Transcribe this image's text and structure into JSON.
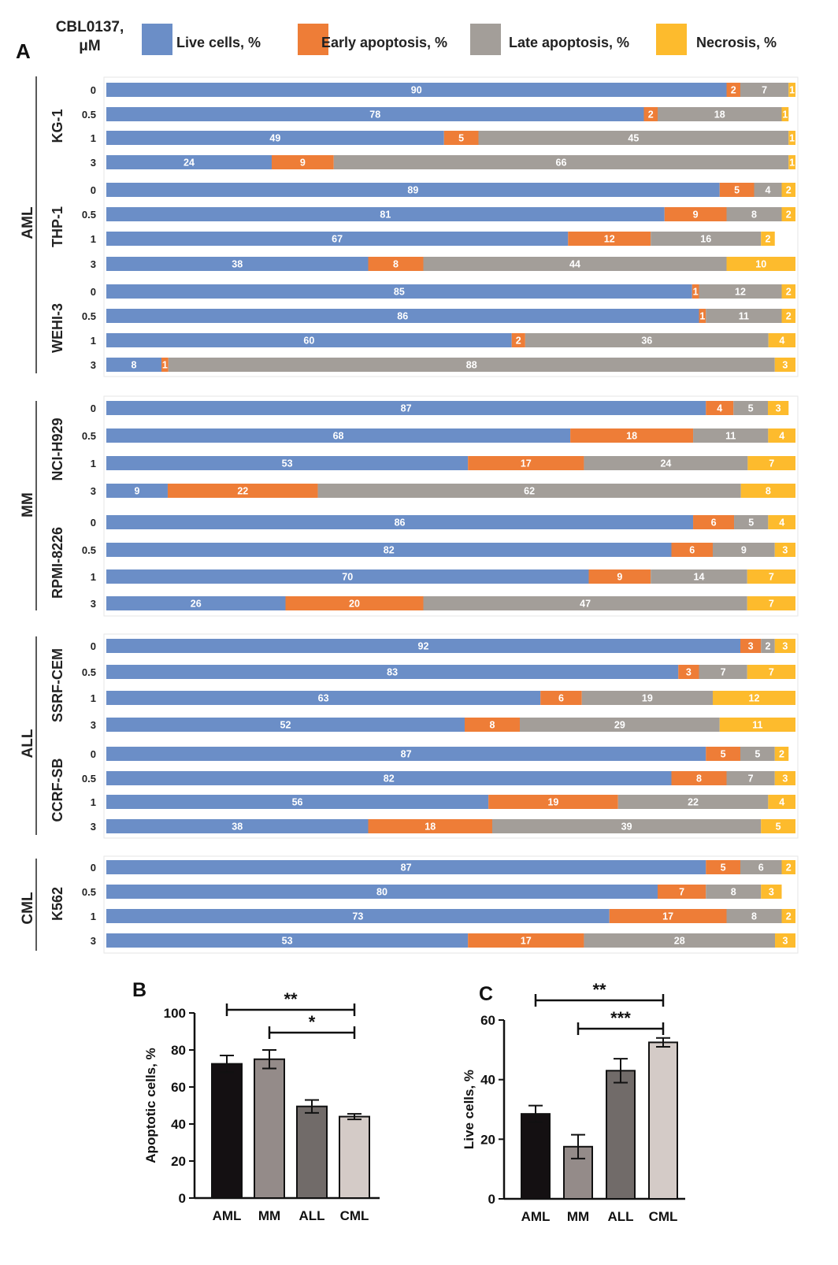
{
  "colors": {
    "live": "#6b8ec7",
    "early": "#ee7d37",
    "late": "#a39e99",
    "necrosis": "#fdbb2d",
    "black": "#111111",
    "bar_b": [
      "#141012",
      "#948b89",
      "#716b69",
      "#d4cbc7"
    ],
    "bar_c": [
      "#141012",
      "#948b89",
      "#716b69",
      "#d4cbc7"
    ]
  },
  "panel_labels": {
    "a": "A",
    "b": "B",
    "c": "C"
  },
  "legend": {
    "dose_label_line1": "CBL0137,",
    "dose_label_line2": "μM",
    "entries": [
      {
        "key": "live",
        "label": "Live cells, %"
      },
      {
        "key": "early",
        "label": "Early apoptosis, %"
      },
      {
        "key": "late",
        "label": "Late apoptosis, %"
      },
      {
        "key": "necrosis",
        "label": "Necrosis, %"
      }
    ]
  },
  "chart_data": [
    {
      "type": "bar",
      "orientation": "horizontal",
      "stacked": true,
      "panel": "A",
      "series_names": [
        "Live cells, %",
        "Early apoptosis, %",
        "Late apoptosis, %",
        "Necrosis, %"
      ],
      "xlim": [
        0,
        100
      ],
      "groups": [
        {
          "name": "AML",
          "cell_lines": [
            {
              "name": "KG-1",
              "rows": [
                {
                  "dose": "0",
                  "values": [
                    90,
                    2,
                    7,
                    1
                  ]
                },
                {
                  "dose": "0.5",
                  "values": [
                    78,
                    2,
                    18,
                    1
                  ]
                },
                {
                  "dose": "1",
                  "values": [
                    49,
                    5,
                    45,
                    1
                  ]
                },
                {
                  "dose": "3",
                  "values": [
                    24,
                    9,
                    66,
                    1
                  ]
                }
              ]
            },
            {
              "name": "THP-1",
              "rows": [
                {
                  "dose": "0",
                  "values": [
                    89,
                    5,
                    4,
                    2
                  ]
                },
                {
                  "dose": "0.5",
                  "values": [
                    81,
                    9,
                    8,
                    2
                  ]
                },
                {
                  "dose": "1",
                  "values": [
                    67,
                    12,
                    16,
                    2
                  ]
                },
                {
                  "dose": "3",
                  "values": [
                    38,
                    8,
                    44,
                    10
                  ]
                }
              ]
            },
            {
              "name": "WEHI-3",
              "rows": [
                {
                  "dose": "0",
                  "values": [
                    85,
                    1,
                    12,
                    2
                  ]
                },
                {
                  "dose": "0.5",
                  "values": [
                    86,
                    1,
                    11,
                    2
                  ]
                },
                {
                  "dose": "1",
                  "values": [
                    60,
                    2,
                    36,
                    4
                  ]
                },
                {
                  "dose": "3",
                  "values": [
                    8,
                    1,
                    88,
                    3
                  ]
                }
              ]
            }
          ]
        },
        {
          "name": "MM",
          "cell_lines": [
            {
              "name": "NCI-H929",
              "rows": [
                {
                  "dose": "0",
                  "values": [
                    87,
                    4,
                    5,
                    3
                  ]
                },
                {
                  "dose": "0.5",
                  "values": [
                    68,
                    18,
                    11,
                    4
                  ]
                },
                {
                  "dose": "1",
                  "values": [
                    53,
                    17,
                    24,
                    7
                  ]
                },
                {
                  "dose": "3",
                  "values": [
                    9,
                    22,
                    62,
                    8
                  ]
                }
              ]
            },
            {
              "name": "RPMI-8226",
              "rows": [
                {
                  "dose": "0",
                  "values": [
                    86,
                    6,
                    5,
                    4
                  ]
                },
                {
                  "dose": "0.5",
                  "values": [
                    82,
                    6,
                    9,
                    3
                  ]
                },
                {
                  "dose": "1",
                  "values": [
                    70,
                    9,
                    14,
                    7
                  ]
                },
                {
                  "dose": "3",
                  "values": [
                    26,
                    20,
                    47,
                    7
                  ]
                }
              ]
            }
          ]
        },
        {
          "name": "ALL",
          "cell_lines": [
            {
              "name": "SSRF-CEM",
              "rows": [
                {
                  "dose": "0",
                  "values": [
                    92,
                    3,
                    2,
                    3
                  ]
                },
                {
                  "dose": "0.5",
                  "values": [
                    83,
                    3,
                    7,
                    7
                  ]
                },
                {
                  "dose": "1",
                  "values": [
                    63,
                    6,
                    19,
                    12
                  ]
                },
                {
                  "dose": "3",
                  "values": [
                    52,
                    8,
                    29,
                    11
                  ]
                }
              ]
            },
            {
              "name": "CCRF-SB",
              "rows": [
                {
                  "dose": "0",
                  "values": [
                    87,
                    5,
                    5,
                    2
                  ]
                },
                {
                  "dose": "0.5",
                  "values": [
                    82,
                    8,
                    7,
                    3
                  ]
                },
                {
                  "dose": "1",
                  "values": [
                    56,
                    19,
                    22,
                    4
                  ]
                },
                {
                  "dose": "3",
                  "values": [
                    38,
                    18,
                    39,
                    5
                  ]
                }
              ]
            }
          ]
        },
        {
          "name": "CML",
          "cell_lines": [
            {
              "name": "K562",
              "rows": [
                {
                  "dose": "0",
                  "values": [
                    87,
                    5,
                    6,
                    2
                  ]
                },
                {
                  "dose": "0.5",
                  "values": [
                    80,
                    7,
                    8,
                    3
                  ]
                },
                {
                  "dose": "1",
                  "values": [
                    73,
                    17,
                    8,
                    2
                  ]
                },
                {
                  "dose": "3",
                  "values": [
                    53,
                    17,
                    28,
                    3
                  ]
                }
              ]
            }
          ]
        }
      ]
    },
    {
      "type": "bar",
      "panel": "B",
      "categories": [
        "AML",
        "MM",
        "ALL",
        "CML"
      ],
      "values": [
        72.5,
        75,
        49.5,
        44
      ],
      "errors": [
        4.5,
        5,
        3.5,
        1.5
      ],
      "ylabel": "Apoptotic cells, %",
      "ylim": [
        0,
        100
      ],
      "yticks": [
        "0",
        "20",
        "40",
        "60",
        "80",
        "100"
      ],
      "significance": [
        {
          "from": "AML",
          "to": "CML",
          "label": "**"
        },
        {
          "from": "MM",
          "to": "CML",
          "label": "*"
        }
      ]
    },
    {
      "type": "bar",
      "panel": "C",
      "categories": [
        "AML",
        "MM",
        "ALL",
        "CML"
      ],
      "values": [
        28.5,
        17.5,
        43,
        52.5
      ],
      "errors": [
        2.8,
        4,
        4,
        1.5
      ],
      "ylabel": "Live cells, %",
      "ylim": [
        0,
        60
      ],
      "yticks": [
        "0",
        "20",
        "40",
        "60"
      ],
      "significance": [
        {
          "from": "AML",
          "to": "CML",
          "label": "**"
        },
        {
          "from": "MM",
          "to": "CML",
          "label": "***"
        }
      ]
    }
  ]
}
